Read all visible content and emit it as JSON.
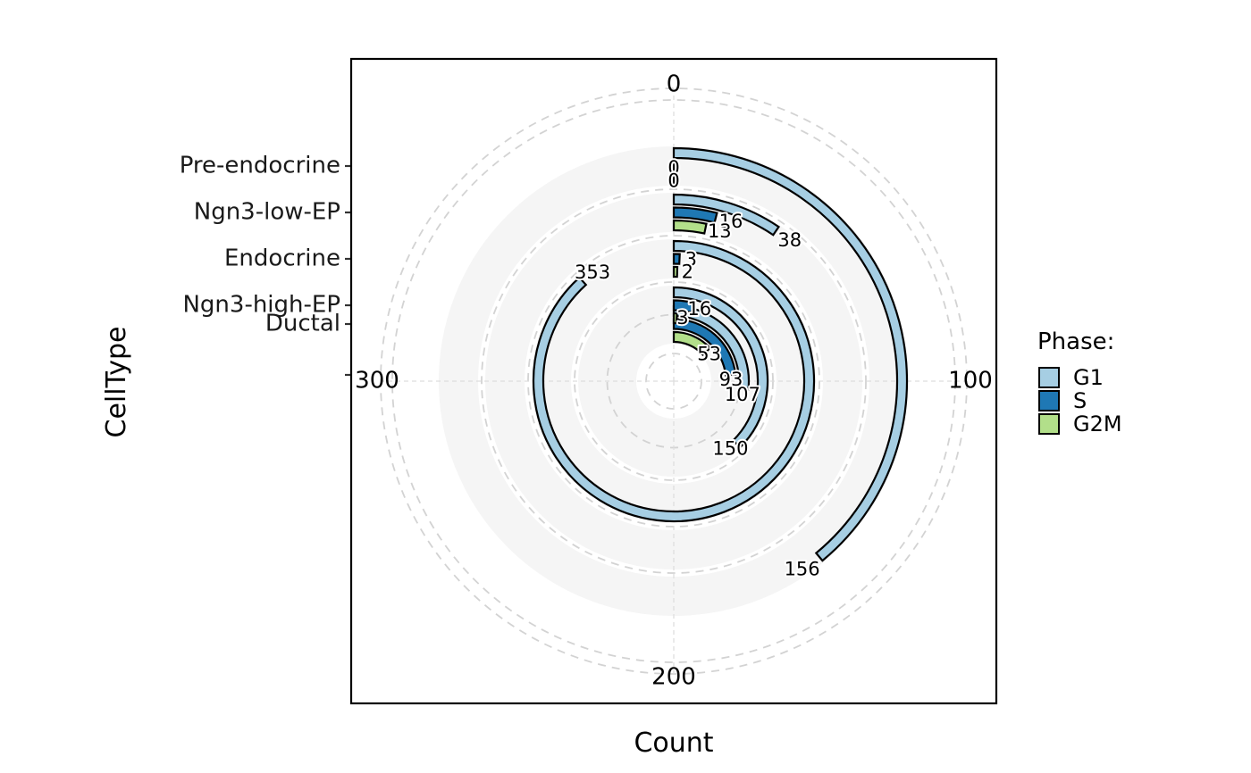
{
  "chart_data": {
    "type": "bar",
    "subtype": "radial-stacked-bar",
    "xlabel": "Count",
    "ylabel": "CellType",
    "theta_range": [
      0,
      400
    ],
    "theta_tick_labels": [
      "0",
      "100",
      "200",
      "300"
    ],
    "theta_ticks": [
      0,
      100,
      200,
      300
    ],
    "grid": "dashed circles",
    "legend_title": "Phase:",
    "legend_position": "right",
    "categories": [
      "Ductal",
      "Ngn3-high-EP",
      "Endocrine",
      "Ngn3-low-EP",
      "Pre-endocrine"
    ],
    "series": [
      {
        "name": "G1",
        "color": "#a6cee3",
        "values": [
          107,
          150,
          353,
          38,
          156
        ]
      },
      {
        "name": "S",
        "color": "#1f78b4",
        "values": [
          93,
          16,
          3,
          16,
          0
        ]
      },
      {
        "name": "G2M",
        "color": "#b2df8a",
        "values": [
          53,
          3,
          2,
          13,
          0
        ]
      }
    ],
    "value_labels": [
      {
        "category": "Ductal",
        "series": "G1",
        "text": "107"
      },
      {
        "category": "Ductal",
        "series": "S",
        "text": "93"
      },
      {
        "category": "Ductal",
        "series": "G2M",
        "text": "53"
      },
      {
        "category": "Ngn3-high-EP",
        "series": "G1",
        "text": "150"
      },
      {
        "category": "Ngn3-high-EP",
        "series": "S",
        "text": "16"
      },
      {
        "category": "Ngn3-high-EP",
        "series": "G2M",
        "text": "3"
      },
      {
        "category": "Endocrine",
        "series": "G1",
        "text": "353"
      },
      {
        "category": "Endocrine",
        "series": "S",
        "text": "3"
      },
      {
        "category": "Endocrine",
        "series": "G2M",
        "text": "2"
      },
      {
        "category": "Ngn3-low-EP",
        "series": "G1",
        "text": "38"
      },
      {
        "category": "Ngn3-low-EP",
        "series": "S",
        "text": "16"
      },
      {
        "category": "Ngn3-low-EP",
        "series": "G2M",
        "text": "13"
      },
      {
        "category": "Pre-endocrine",
        "series": "G1",
        "text": "156"
      },
      {
        "category": "Pre-endocrine",
        "series": "S",
        "text": "0"
      },
      {
        "category": "Pre-endocrine",
        "series": "G2M",
        "text": "0"
      }
    ]
  }
}
